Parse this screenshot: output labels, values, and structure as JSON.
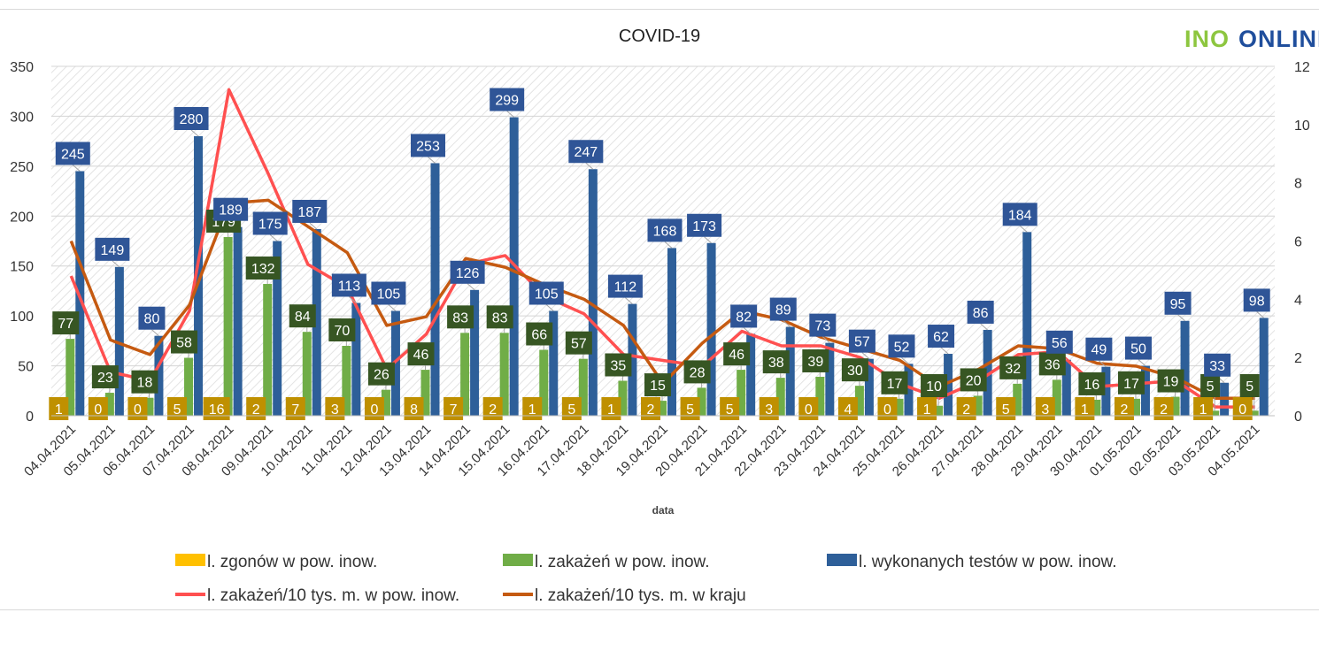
{
  "chart_data": {
    "type": "bar",
    "title": "COVID-19",
    "xlabel": "data",
    "ylabel": "",
    "ylim": [
      0,
      350
    ],
    "y2lim": [
      0,
      12
    ],
    "yticks": [
      0,
      50,
      100,
      150,
      200,
      250,
      300,
      350
    ],
    "y2ticks": [
      0,
      2,
      4,
      6,
      8,
      10,
      12
    ],
    "grid": true,
    "legend_position": "bottom",
    "categories": [
      "04.04.2021",
      "05.04.2021",
      "06.04.2021",
      "07.04.2021",
      "08.04.2021",
      "09.04.2021",
      "10.04.2021",
      "11.04.2021",
      "12.04.2021",
      "13.04.2021",
      "14.04.2021",
      "15.04.2021",
      "16.04.2021",
      "17.04.2021",
      "18.04.2021",
      "19.04.2021",
      "20.04.2021",
      "21.04.2021",
      "22.04.2021",
      "23.04.2021",
      "24.04.2021",
      "25.04.2021",
      "26.04.2021",
      "27.04.2021",
      "28.04.2021",
      "29.04.2021",
      "30.04.2021",
      "01.05.2021",
      "02.05.2021",
      "03.05.2021",
      "04.05.2021"
    ],
    "series": [
      {
        "name": "l. zgonów w pow. inow.",
        "kind": "bar",
        "axis": "left",
        "color": "#ffc000",
        "label_bg": "#bf9000",
        "values": [
          1,
          0,
          0,
          5,
          16,
          2,
          7,
          3,
          0,
          8,
          7,
          2,
          1,
          5,
          1,
          2,
          5,
          5,
          3,
          0,
          4,
          0,
          1,
          2,
          5,
          3,
          1,
          2,
          2,
          1,
          0
        ]
      },
      {
        "name": "l. zakażeń w pow. inow.",
        "kind": "bar",
        "axis": "left",
        "color": "#70ad47",
        "label_bg": "#375623",
        "values": [
          77,
          23,
          18,
          58,
          179,
          132,
          84,
          70,
          26,
          46,
          83,
          83,
          66,
          57,
          35,
          15,
          28,
          46,
          38,
          39,
          30,
          17,
          10,
          20,
          32,
          36,
          16,
          17,
          19,
          5,
          5
        ]
      },
      {
        "name": "l. wykonanych testów w pow. inow.",
        "kind": "bar",
        "axis": "left",
        "color": "#2e5f99",
        "label_bg": "#2f5597",
        "values": [
          245,
          149,
          80,
          280,
          189,
          175,
          187,
          113,
          105,
          253,
          126,
          299,
          105,
          247,
          112,
          168,
          173,
          82,
          89,
          73,
          57,
          52,
          62,
          86,
          184,
          56,
          49,
          50,
          95,
          33,
          98
        ]
      },
      {
        "name": "l. zakażeń/10 tys. m. w pow. inow.",
        "kind": "line",
        "axis": "right",
        "color": "#ff5050",
        "values": [
          4.8,
          1.5,
          1.2,
          3.6,
          11.2,
          8.3,
          5.2,
          4.4,
          1.6,
          2.8,
          5.2,
          5.5,
          4.1,
          3.5,
          2.1,
          1.9,
          1.7,
          2.9,
          2.4,
          2.4,
          2.0,
          1.1,
          0.6,
          1.2,
          2.1,
          2.2,
          1.0,
          1.1,
          1.2,
          0.3,
          0.3
        ]
      },
      {
        "name": "l. zakażeń/10 tys. m. w kraju",
        "kind": "line",
        "axis": "right",
        "color": "#c55a11",
        "values": [
          6.0,
          2.6,
          2.1,
          3.8,
          7.3,
          7.4,
          6.5,
          5.6,
          3.1,
          3.4,
          5.4,
          5.1,
          4.5,
          4.0,
          3.1,
          1.1,
          2.5,
          3.6,
          3.3,
          2.7,
          2.3,
          1.9,
          1.0,
          1.6,
          2.4,
          2.3,
          1.8,
          1.7,
          1.3,
          0.6,
          0.6
        ]
      }
    ]
  }
}
